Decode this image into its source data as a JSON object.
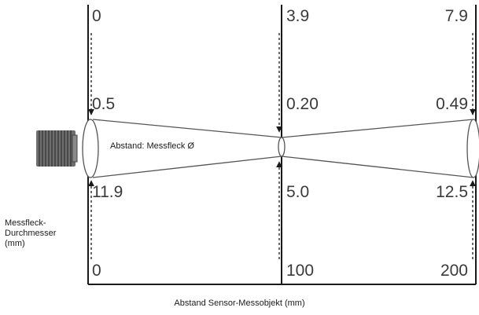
{
  "distances": {
    "top": [
      "0",
      "3.9",
      "7.9"
    ],
    "bottom": [
      "0",
      "100",
      "200"
    ]
  },
  "spot_diameters": {
    "upper": [
      "0.5",
      "0.20",
      "0.49"
    ],
    "lower": [
      "11.9",
      "5.0",
      "12.5"
    ]
  },
  "labels": {
    "beam": "Abstand: Messfleck Ø",
    "y_axis": [
      "Messfleck-",
      "Durchmesser",
      "(mm)"
    ],
    "x_axis": "Abstand Sensor-Messobjekt (mm)"
  },
  "icons": {
    "sensor": "sensor-head-icon"
  },
  "colors": {
    "frame": "#1a1a1a",
    "text": "#3a3a3a",
    "beam": "#555555",
    "sensor_body": "#7a7a7a"
  }
}
